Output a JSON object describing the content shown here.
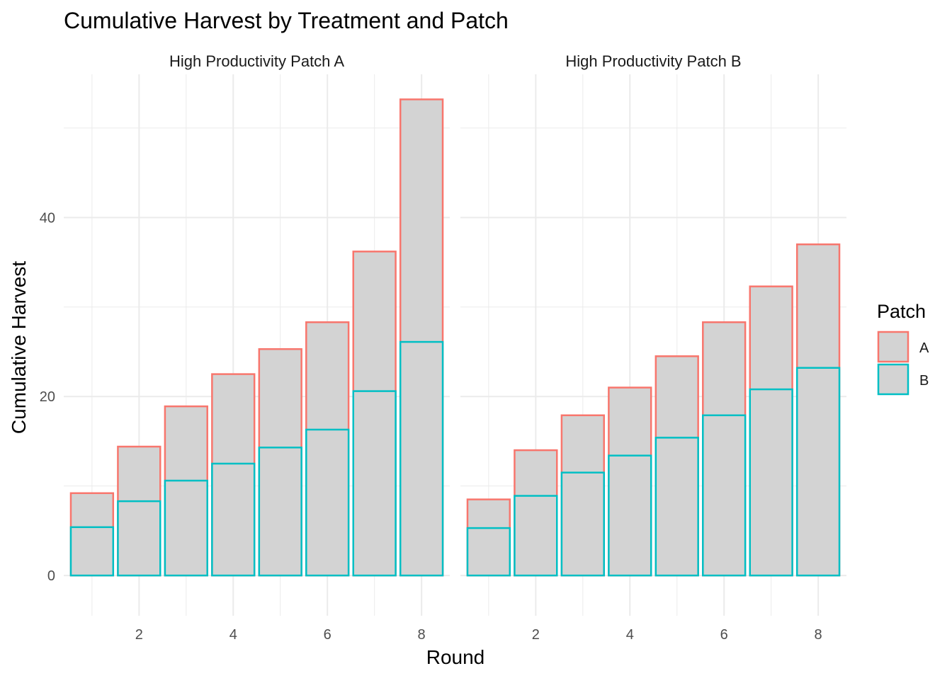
{
  "chart_data": {
    "type": "bar",
    "title": "Cumulative Harvest by Treatment and Patch",
    "xlabel": "Round",
    "ylabel": "Cumulative Harvest",
    "ylim": [
      -4.5,
      56
    ],
    "xlim": [
      0.4,
      8.6
    ],
    "x_ticks": [
      2,
      4,
      6,
      8
    ],
    "y_ticks": [
      0,
      20,
      40
    ],
    "grid": true,
    "stacked": false,
    "fill_color": "#d3d3d3",
    "legend": {
      "title": "Patch",
      "position": "right",
      "entries": [
        {
          "label": "A",
          "color": "#F8766D"
        },
        {
          "label": "B",
          "color": "#00BFC4"
        }
      ]
    },
    "panels": [
      {
        "title": "High Productivity Patch A",
        "x": [
          1,
          2,
          3,
          4,
          5,
          6,
          7,
          8
        ],
        "series": [
          {
            "name": "A",
            "color": "#F8766D",
            "values": [
              9.2,
              14.4,
              18.9,
              22.5,
              25.3,
              28.3,
              36.2,
              53.2
            ]
          },
          {
            "name": "B",
            "color": "#00BFC4",
            "values": [
              5.4,
              8.3,
              10.6,
              12.5,
              14.3,
              16.3,
              20.6,
              26.1
            ]
          }
        ]
      },
      {
        "title": "High Productivity Patch B",
        "x": [
          1,
          2,
          3,
          4,
          5,
          6,
          7,
          8
        ],
        "series": [
          {
            "name": "A",
            "color": "#F8766D",
            "values": [
              8.5,
              14.0,
              17.9,
              21.0,
              24.5,
              28.3,
              32.3,
              37.0
            ]
          },
          {
            "name": "B",
            "color": "#00BFC4",
            "values": [
              5.3,
              8.9,
              11.5,
              13.4,
              15.4,
              17.9,
              20.8,
              23.2
            ]
          }
        ]
      }
    ]
  }
}
